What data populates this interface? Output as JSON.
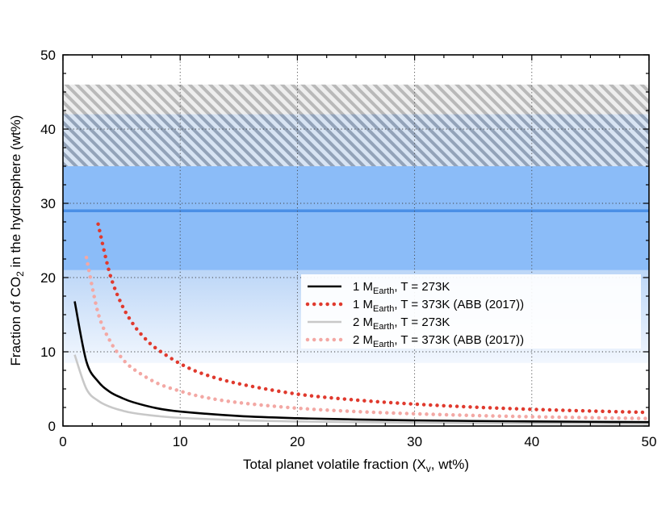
{
  "chart_data": {
    "type": "line",
    "xlabel": "Total planet volatile fraction (X",
    "xlabel_sub": "v",
    "xlabel_suffix": ", wt%)",
    "ylabel": "Fraction of CO",
    "ylabel_sub": "2",
    "ylabel_suffix": " in the hydrosphere (wt%)",
    "xlim": [
      0,
      50
    ],
    "ylim": [
      0,
      50
    ],
    "xticks": [
      0,
      10,
      20,
      30,
      40,
      50
    ],
    "yticks": [
      0,
      10,
      20,
      30,
      40,
      50
    ],
    "grid": "dotted at major ticks",
    "bands": [
      {
        "name": "light-blue-gradient-band",
        "y0": 8.5,
        "y1": 21,
        "color": "#c7ddf8"
      },
      {
        "name": "blue-band",
        "y0": 21,
        "y1": 37,
        "color": "#8bbcf8"
      },
      {
        "name": "hatched-outer-band",
        "y0": 35,
        "y1": 46,
        "color": "#c8c8c8"
      },
      {
        "name": "hatched-inner-band",
        "y0": 35,
        "y1": 42,
        "color": "#9aa6b8"
      }
    ],
    "reference_line": {
      "y": 29,
      "color": "#4a8fe6"
    },
    "legend_position": "center-right",
    "series": [
      {
        "name": "1 M_Earth, T = 273K",
        "label_prefix": "1 M",
        "label_sub": "Earth",
        "label_suffix": ", T = 273K",
        "style": "solid",
        "color": "#000000",
        "x": [
          1,
          2,
          3,
          4,
          5,
          6,
          8,
          10,
          15,
          20,
          25,
          30,
          35,
          40,
          45,
          50
        ],
        "y": [
          16.8,
          8.7,
          6.0,
          4.6,
          3.8,
          3.2,
          2.4,
          1.95,
          1.35,
          1.05,
          0.88,
          0.76,
          0.68,
          0.62,
          0.57,
          0.53
        ]
      },
      {
        "name": "1 M_Earth, T = 373K (ABB (2017))",
        "label_prefix": "1 M",
        "label_sub": "Earth",
        "label_suffix": ", T = 373K (ABB (2017))",
        "style": "dotted",
        "color": "#e03a2e",
        "x": [
          3,
          4,
          5,
          6,
          7,
          8,
          10,
          12,
          15,
          20,
          25,
          30,
          35,
          40,
          45,
          50
        ],
        "y": [
          27.2,
          20.5,
          16.4,
          13.7,
          11.8,
          10.4,
          8.4,
          7.0,
          5.7,
          4.3,
          3.5,
          2.95,
          2.55,
          2.25,
          2.02,
          1.83
        ]
      },
      {
        "name": "2 M_Earth, T = 273K",
        "label_prefix": "2 M",
        "label_sub": "Earth",
        "label_suffix": ", T = 273K",
        "style": "solid",
        "color": "#c8c8c8",
        "x": [
          1,
          2,
          3,
          4,
          5,
          6,
          8,
          10,
          15,
          20,
          25,
          30,
          35,
          40,
          45,
          50
        ],
        "y": [
          9.6,
          5.0,
          3.4,
          2.6,
          2.1,
          1.75,
          1.35,
          1.1,
          0.78,
          0.62,
          0.52,
          0.45,
          0.4,
          0.36,
          0.33,
          0.3
        ]
      },
      {
        "name": "2 M_Earth, T = 373K (ABB (2017))",
        "label_prefix": "2 M",
        "label_sub": "Earth",
        "label_suffix": ", T = 373K (ABB (2017))",
        "style": "dotted",
        "color": "#f3a8a4",
        "x": [
          2,
          3,
          4,
          5,
          6,
          8,
          10,
          12,
          15,
          20,
          25,
          30,
          35,
          40,
          45,
          50
        ],
        "y": [
          22.7,
          15.2,
          11.5,
          9.2,
          7.7,
          5.8,
          4.7,
          3.9,
          3.15,
          2.4,
          1.95,
          1.65,
          1.42,
          1.25,
          1.12,
          1.01
        ]
      }
    ]
  }
}
